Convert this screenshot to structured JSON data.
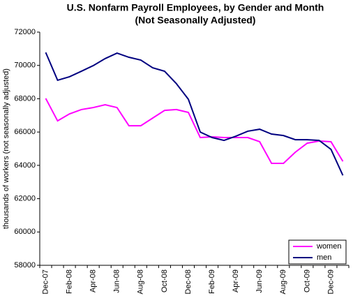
{
  "chart_data": {
    "type": "line",
    "title": "U.S. Nonfarm Payroll Employees, by Gender and Month",
    "subtitle": "(Not Seasonally Adjusted)",
    "y_label": "thousands of workers (not seasonally adjusted)",
    "categories": [
      "Dec-07",
      null,
      "Feb-08",
      null,
      "Apr-08",
      null,
      "Jun-08",
      null,
      "Aug-08",
      null,
      "Oct-08",
      null,
      "Dec-08",
      null,
      "Feb-09",
      null,
      "Apr-09",
      null,
      "Jun-09",
      null,
      "Aug-09",
      null,
      "Oct-09",
      null,
      "Dec-09",
      null
    ],
    "series": [
      {
        "name": "women",
        "color": "#ff00ff",
        "values": [
          68020,
          66670,
          67090,
          67350,
          67470,
          67640,
          67470,
          66380,
          66380,
          66840,
          67300,
          67350,
          67180,
          65670,
          65710,
          65670,
          65670,
          65670,
          65420,
          64120,
          64120,
          64790,
          65330,
          65460,
          65420,
          64240
        ]
      },
      {
        "name": "men",
        "color": "#000080",
        "values": [
          70780,
          69110,
          69320,
          69650,
          69990,
          70410,
          70740,
          70490,
          70320,
          69860,
          69650,
          68900,
          67970,
          66000,
          65670,
          65500,
          65750,
          66050,
          66170,
          65880,
          65790,
          65540,
          65540,
          65500,
          64960,
          63400
        ]
      }
    ],
    "ylim": [
      58000,
      72000
    ],
    "yticks": [
      58000,
      60000,
      62000,
      64000,
      66000,
      68000,
      70000,
      72000
    ],
    "legend": "lower right"
  }
}
